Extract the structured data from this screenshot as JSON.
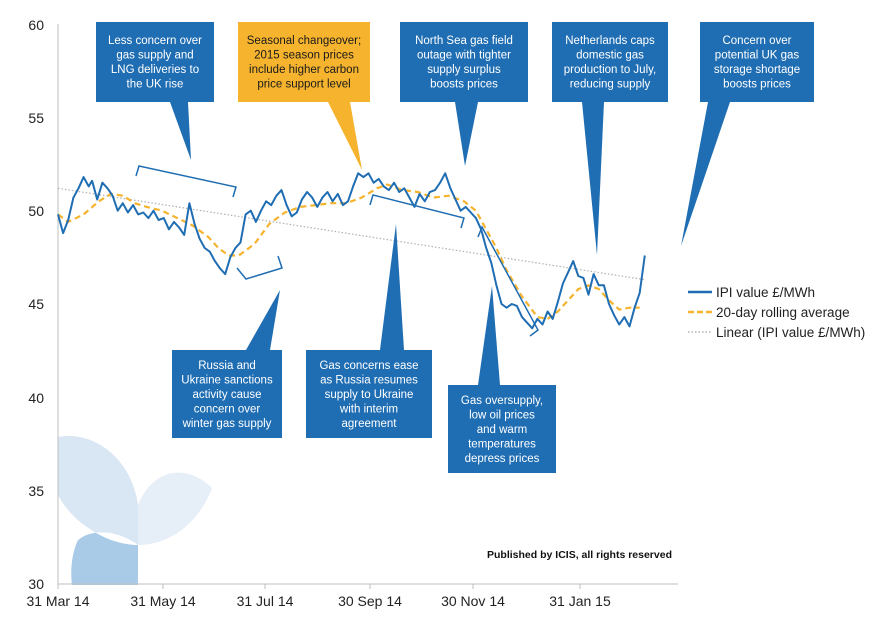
{
  "chart_data": {
    "type": "line",
    "x_ticks": [
      "31 Mar 14",
      "31 May 14",
      "31 Jul 14",
      "30 Sep 14",
      "30 Nov 14",
      "31 Jan 15"
    ],
    "y_ticks": [
      "30",
      "35",
      "40",
      "45",
      "50",
      "55",
      "60"
    ],
    "ylim": [
      30,
      60
    ],
    "grid": false,
    "legend_position": "right",
    "series": [
      {
        "name": "IPI value £/MWh",
        "style": "solid",
        "color": "#1f6db3",
        "points": [
          [
            "2014-03-31",
            49.8
          ],
          [
            "2014-04-03",
            48.8
          ],
          [
            "2014-04-06",
            49.5
          ],
          [
            "2014-04-09",
            50.7
          ],
          [
            "2014-04-12",
            51.2
          ],
          [
            "2014-04-15",
            51.8
          ],
          [
            "2014-04-18",
            51.3
          ],
          [
            "2014-04-20",
            51.6
          ],
          [
            "2014-04-23",
            50.6
          ],
          [
            "2014-04-26",
            51.5
          ],
          [
            "2014-04-29",
            51.2
          ],
          [
            "2014-05-02",
            50.8
          ],
          [
            "2014-05-05",
            50.0
          ],
          [
            "2014-05-08",
            50.4
          ],
          [
            "2014-05-11",
            49.9
          ],
          [
            "2014-05-14",
            50.3
          ],
          [
            "2014-05-17",
            49.8
          ],
          [
            "2014-05-20",
            49.9
          ],
          [
            "2014-05-23",
            49.6
          ],
          [
            "2014-05-26",
            50.0
          ],
          [
            "2014-05-29",
            49.5
          ],
          [
            "2014-06-01",
            49.6
          ],
          [
            "2014-06-04",
            49.0
          ],
          [
            "2014-06-07",
            49.4
          ],
          [
            "2014-06-10",
            49.1
          ],
          [
            "2014-06-13",
            48.7
          ],
          [
            "2014-06-16",
            50.4
          ],
          [
            "2014-06-19",
            49.3
          ],
          [
            "2014-06-22",
            48.5
          ],
          [
            "2014-06-25",
            48.0
          ],
          [
            "2014-06-28",
            47.8
          ],
          [
            "2014-07-01",
            47.3
          ],
          [
            "2014-07-04",
            46.9
          ],
          [
            "2014-07-07",
            46.6
          ],
          [
            "2014-07-10",
            47.5
          ],
          [
            "2014-07-13",
            48.0
          ],
          [
            "2014-07-16",
            48.3
          ],
          [
            "2014-07-19",
            49.8
          ],
          [
            "2014-07-22",
            50.0
          ],
          [
            "2014-07-25",
            49.4
          ],
          [
            "2014-07-28",
            50.0
          ],
          [
            "2014-07-31",
            50.5
          ],
          [
            "2014-08-03",
            50.3
          ],
          [
            "2014-08-06",
            50.8
          ],
          [
            "2014-08-09",
            51.1
          ],
          [
            "2014-08-12",
            50.3
          ],
          [
            "2014-08-15",
            49.7
          ],
          [
            "2014-08-18",
            49.9
          ],
          [
            "2014-08-21",
            50.6
          ],
          [
            "2014-08-24",
            51.0
          ],
          [
            "2014-08-27",
            50.7
          ],
          [
            "2014-08-30",
            50.2
          ],
          [
            "2014-09-02",
            50.7
          ],
          [
            "2014-09-05",
            51.0
          ],
          [
            "2014-09-08",
            50.5
          ],
          [
            "2014-09-11",
            50.9
          ],
          [
            "2014-09-14",
            50.3
          ],
          [
            "2014-09-17",
            50.5
          ],
          [
            "2014-09-20",
            51.3
          ],
          [
            "2014-09-23",
            52.0
          ],
          [
            "2014-09-26",
            51.8
          ],
          [
            "2014-09-29",
            52.0
          ],
          [
            "2014-10-02",
            51.5
          ],
          [
            "2014-10-05",
            51.7
          ],
          [
            "2014-10-08",
            51.3
          ],
          [
            "2014-10-11",
            51.1
          ],
          [
            "2014-10-14",
            51.5
          ],
          [
            "2014-10-17",
            51.0
          ],
          [
            "2014-10-20",
            51.2
          ],
          [
            "2014-10-23",
            50.7
          ],
          [
            "2014-10-26",
            50.2
          ],
          [
            "2014-10-29",
            50.9
          ],
          [
            "2014-11-01",
            50.5
          ],
          [
            "2014-11-04",
            51.0
          ],
          [
            "2014-11-07",
            51.1
          ],
          [
            "2014-11-10",
            51.5
          ],
          [
            "2014-11-13",
            52.0
          ],
          [
            "2014-11-16",
            51.2
          ],
          [
            "2014-11-19",
            50.6
          ],
          [
            "2014-11-22",
            50.0
          ],
          [
            "2014-11-25",
            50.2
          ],
          [
            "2014-11-28",
            49.9
          ],
          [
            "2014-12-01",
            49.6
          ],
          [
            "2014-12-04",
            49.0
          ],
          [
            "2014-12-07",
            48.0
          ],
          [
            "2014-12-10",
            47.2
          ],
          [
            "2014-12-13",
            46.0
          ],
          [
            "2014-12-16",
            45.0
          ],
          [
            "2014-12-19",
            44.8
          ],
          [
            "2014-12-22",
            45.0
          ],
          [
            "2014-12-25",
            44.9
          ],
          [
            "2014-12-28",
            44.3
          ],
          [
            "2014-12-31",
            44.0
          ],
          [
            "2015-01-03",
            43.7
          ],
          [
            "2015-01-06",
            44.2
          ],
          [
            "2015-01-09",
            43.9
          ],
          [
            "2015-01-12",
            44.6
          ],
          [
            "2015-01-15",
            44.2
          ],
          [
            "2015-01-18",
            45.1
          ],
          [
            "2015-01-21",
            46.1
          ],
          [
            "2015-01-24",
            46.7
          ],
          [
            "2015-01-27",
            47.3
          ],
          [
            "2015-01-30",
            46.5
          ],
          [
            "2015-02-02",
            46.4
          ],
          [
            "2015-02-05",
            45.5
          ],
          [
            "2015-02-08",
            46.6
          ],
          [
            "2015-02-11",
            46.0
          ],
          [
            "2015-02-14",
            46.0
          ],
          [
            "2015-02-17",
            45.0
          ],
          [
            "2015-02-20",
            44.4
          ],
          [
            "2015-02-23",
            43.9
          ],
          [
            "2015-02-26",
            44.3
          ],
          [
            "2015-03-01",
            43.8
          ],
          [
            "2015-03-04",
            44.8
          ],
          [
            "2015-03-07",
            45.6
          ],
          [
            "2015-03-10",
            47.6
          ]
        ]
      },
      {
        "name": "20-day rolling average",
        "style": "dashed",
        "color": "#f5b32e",
        "points": [
          [
            "2014-03-31",
            49.8
          ],
          [
            "2014-04-06",
            49.4
          ],
          [
            "2014-04-15",
            49.8
          ],
          [
            "2014-04-24",
            50.5
          ],
          [
            "2014-05-01",
            50.9
          ],
          [
            "2014-05-08",
            50.8
          ],
          [
            "2014-05-15",
            50.4
          ],
          [
            "2014-05-22",
            50.2
          ],
          [
            "2014-05-31",
            50.0
          ],
          [
            "2014-06-09",
            49.6
          ],
          [
            "2014-06-18",
            49.2
          ],
          [
            "2014-06-27",
            48.6
          ],
          [
            "2014-07-03",
            48.0
          ],
          [
            "2014-07-09",
            47.6
          ],
          [
            "2014-07-15",
            47.6
          ],
          [
            "2014-07-24",
            48.2
          ],
          [
            "2014-08-02",
            49.3
          ],
          [
            "2014-08-11",
            49.9
          ],
          [
            "2014-08-20",
            50.2
          ],
          [
            "2014-08-29",
            50.3
          ],
          [
            "2014-09-07",
            50.4
          ],
          [
            "2014-09-16",
            50.4
          ],
          [
            "2014-09-25",
            50.7
          ],
          [
            "2014-10-04",
            51.2
          ],
          [
            "2014-10-10",
            51.4
          ],
          [
            "2014-10-19",
            51.1
          ],
          [
            "2014-10-28",
            51.0
          ],
          [
            "2014-11-06",
            50.7
          ],
          [
            "2014-11-15",
            50.8
          ],
          [
            "2014-11-24",
            50.5
          ],
          [
            "2014-12-01",
            50.0
          ],
          [
            "2014-12-07",
            49.0
          ],
          [
            "2014-12-13",
            48.0
          ],
          [
            "2014-12-19",
            46.8
          ],
          [
            "2014-12-28",
            45.4
          ],
          [
            "2015-01-06",
            44.3
          ],
          [
            "2015-01-12",
            44.2
          ],
          [
            "2015-01-18",
            44.6
          ],
          [
            "2015-01-24",
            45.2
          ],
          [
            "2015-01-30",
            45.8
          ],
          [
            "2015-02-05",
            46.0
          ],
          [
            "2015-02-11",
            45.8
          ],
          [
            "2015-02-17",
            45.2
          ],
          [
            "2015-02-23",
            44.7
          ],
          [
            "2015-03-01",
            44.8
          ],
          [
            "2015-03-07",
            44.8
          ]
        ]
      },
      {
        "name": "Linear (IPI value £/MWh)",
        "style": "dotted",
        "color": "#b0b0b0",
        "points": [
          [
            "2014-03-31",
            51.2
          ],
          [
            "2015-03-10",
            46.3
          ]
        ]
      }
    ]
  },
  "annotations": [
    {
      "lines": [
        "Less concern over",
        "gas supply and",
        "LNG deliveries to",
        "the UK rise"
      ],
      "fill": "#1f6db3",
      "text_color": "#ffffff"
    },
    {
      "lines": [
        "Seasonal changeover;",
        "2015 season prices",
        "include higher carbon",
        "price support level"
      ],
      "fill": "#f5b32e",
      "text_color": "#1a1a1a"
    },
    {
      "lines": [
        "North Sea gas field",
        "outage with tighter",
        "supply surplus",
        "boosts prices"
      ],
      "fill": "#1f6db3",
      "text_color": "#ffffff"
    },
    {
      "lines": [
        "Netherlands caps",
        "domestic gas",
        "production to July,",
        "reducing supply"
      ],
      "fill": "#1f6db3",
      "text_color": "#ffffff"
    },
    {
      "lines": [
        "Concern over",
        "potential UK gas",
        "storage shortage",
        "boosts prices"
      ],
      "fill": "#1f6db3",
      "text_color": "#ffffff"
    },
    {
      "lines": [
        "Russia and",
        "Ukraine sanctions",
        "activity cause",
        "concern over",
        "winter gas supply"
      ],
      "fill": "#1f6db3",
      "text_color": "#ffffff"
    },
    {
      "lines": [
        "Gas concerns ease",
        "as Russia  resumes",
        "supply to Ukraine",
        "with interim",
        "agreement"
      ],
      "fill": "#1f6db3",
      "text_color": "#ffffff"
    },
    {
      "lines": [
        "Gas oversupply,",
        "low oil prices",
        "and warm",
        "temperatures",
        "depress prices"
      ],
      "fill": "#1f6db3",
      "text_color": "#ffffff"
    }
  ],
  "credit": "Published by ICIS, all rights reserved",
  "colors": {
    "brand_blue": "#1f6db3",
    "accent_orange": "#f5b32e",
    "trend_grey": "#b0b0b0"
  }
}
